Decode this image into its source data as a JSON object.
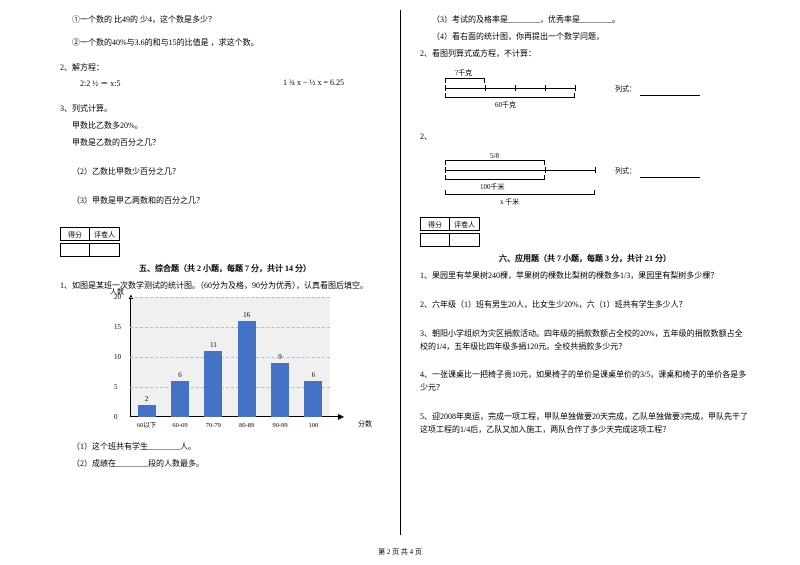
{
  "left": {
    "l1": "①一个数的 比49的 少4，这个数是多少？",
    "l2": "②一个数的40%与3.6的和与15的比值是 ，求这个数。",
    "l3": "2、解方程：",
    "eq1": "2:2 ½ ＝ x:5",
    "eq2": "1 ¾ x − ½ x = 6.25",
    "l4": "3、列式计算。",
    "l5": "甲数比乙数多20%。",
    "l6": "甲数是乙数的百分之几？",
    "l7": "（2）乙数比甲数少百分之几？",
    "l8": "（3）甲数是甲乙两数和的百分之几？",
    "score1": "得分",
    "score2": "评卷人",
    "secTitle": "五、综合题（共 2 小题，每题 7 分，共计 14 分）",
    "l9": "1、如图是某班一次数学测试的统计图。（60分为及格，90分为优秀），认真看图后填空。",
    "chart": {
      "yTitle": "人数",
      "ymax": 20,
      "ytick": 5,
      "categories": [
        "60以下",
        "60-69",
        "70-79",
        "80-89",
        "90-99",
        "100"
      ],
      "values": [
        2,
        6,
        11,
        16,
        9,
        6
      ],
      "barColor": "#4472c4",
      "bgColor": "#f0f0f0",
      "xTitle": "分数"
    },
    "l10": "（1）这个班共有学生________人。",
    "l11": "（2）成绩在________段的人数最多。"
  },
  "right": {
    "r1": "（3）考试的及格率是________，优秀率是________。",
    "r2": "（4）看右面的统计图，你再提出一个数学问题，",
    "r3": "2、看图列算式或方程，不计算：",
    "d1_top": "?千克",
    "d1_bot": "60千克",
    "d1_side": "列式：",
    "d2_top": "5/8",
    "d2_mid": "100千米",
    "d2_bot": "x 千米",
    "d2_side": "列式：",
    "num2": "2、",
    "score1": "得分",
    "score2": "评卷人",
    "secTitle": "六、应用题（共 7 小题，每题 3 分，共计 21 分）",
    "q1": "1、果园里有苹果树240棵，苹果树的棵数比梨树的棵数多1/3，果园里有梨树多少棵？",
    "q2": "2、六年级（1）班有男生20人，比女生少20%，六（1）班共有学生多少人？",
    "q3": "3、朝阳小学组织为灾区捐款活动。四年级的捐款数额占全校的20%，五年级的捐款数额占全校的1/4，五年级比四年级多捐120元。全校共捐款多少元？",
    "q4": "4、一张课桌比一把椅子贵10元，如果椅子的单价是课桌单价的3/5，课桌和椅子的单价各是多少元？",
    "q5": "5、迎2008年奥运，完成一项工程，甲队单独做要20天完成，乙队单独做要3完成，甲队先干了这项工程的1/4后，乙队又加入施工，两队合作了多少天完成这项工程？"
  },
  "footer": "第 2 页 共 4 页"
}
